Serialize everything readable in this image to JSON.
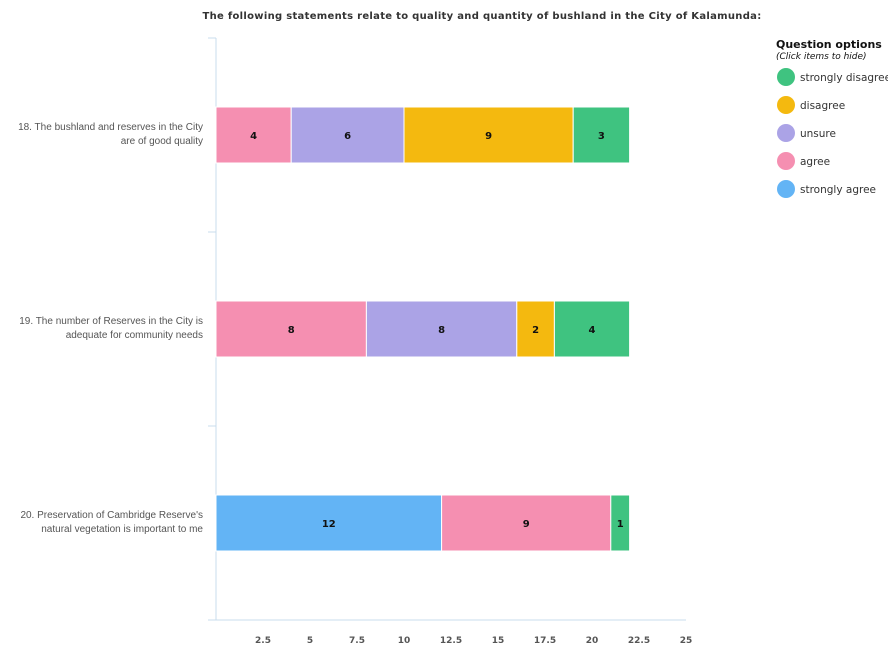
{
  "chart_data": {
    "type": "bar",
    "orientation": "horizontal",
    "stacked": true,
    "title": "The following statements relate to quality and quantity of bushland in the City of Kalamunda:",
    "categories": [
      [
        "18. The bushland and reserves in the City",
        "are of good quality"
      ],
      [
        "19. The number of Reserves in the City is",
        "adequate for community needs"
      ],
      [
        "20. Preservation of Cambridge Reserve's",
        "natural vegetation is important to me"
      ]
    ],
    "stack_order": [
      "strongly agree",
      "agree",
      "unsure",
      "disagree",
      "strongly disagree"
    ],
    "series": [
      {
        "name": "strongly disagree",
        "color": "#3fc380",
        "values": [
          3,
          4,
          1
        ]
      },
      {
        "name": "disagree",
        "color": "#f4b90f",
        "values": [
          9,
          2,
          0
        ]
      },
      {
        "name": "unsure",
        "color": "#aba3e6",
        "values": [
          6,
          8,
          0
        ]
      },
      {
        "name": "agree",
        "color": "#f58fb1",
        "values": [
          4,
          8,
          9
        ]
      },
      {
        "name": "strongly agree",
        "color": "#63b4f5",
        "values": [
          0,
          0,
          12
        ]
      }
    ],
    "xlim": [
      0,
      25
    ],
    "x_ticks": [
      "2.5",
      "5",
      "7.5",
      "10",
      "12.5",
      "15",
      "17.5",
      "20",
      "22.5",
      "25"
    ],
    "grid": false,
    "legend": {
      "title": "Question options",
      "subtitle": "(Click items to hide)",
      "placement": "top-right"
    },
    "axis_color": "#c8dcec"
  }
}
